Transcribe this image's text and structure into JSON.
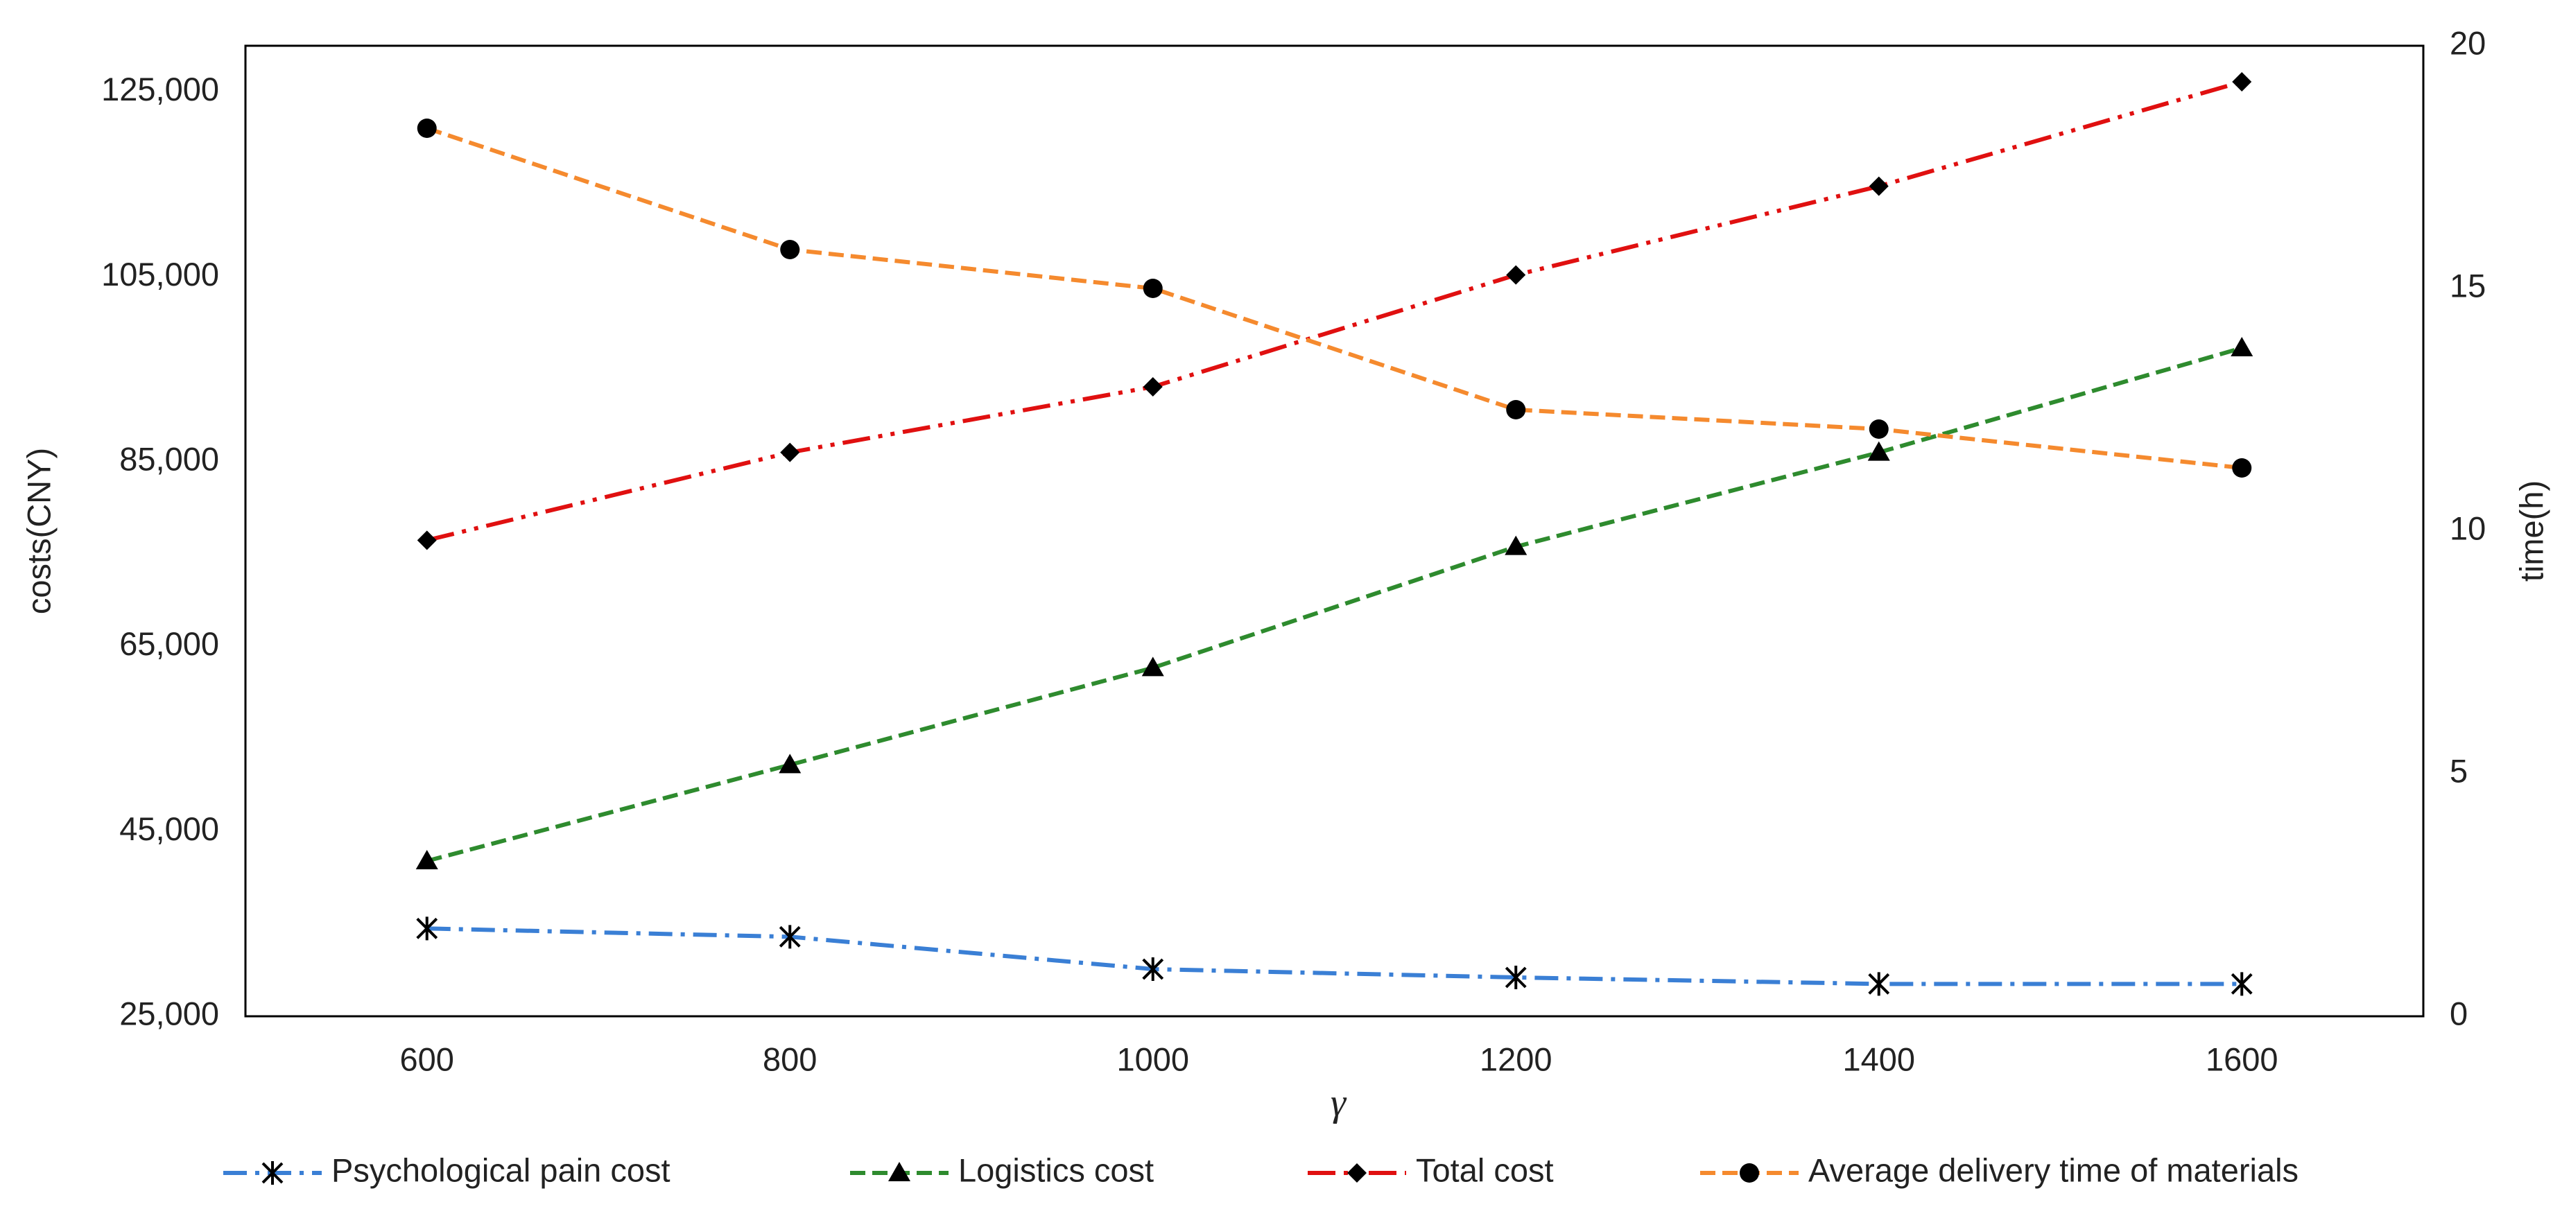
{
  "chart_data": {
    "type": "line",
    "x_label": "γ",
    "y_label": "costs(CNY)",
    "y2_label": "time(h)",
    "x": [
      600,
      800,
      1000,
      1200,
      1400,
      1600
    ],
    "xlim": [
      500,
      1700
    ],
    "xticks": [
      600,
      800,
      1000,
      1200,
      1400,
      1600
    ],
    "ylim": [
      25000,
      130000
    ],
    "yticks": [
      {
        "value": 25000,
        "label": "25,000"
      },
      {
        "value": 45000,
        "label": "45,000"
      },
      {
        "value": 65000,
        "label": "65,000"
      },
      {
        "value": 85000,
        "label": "85,000"
      },
      {
        "value": 105000,
        "label": "105,000"
      },
      {
        "value": 125000,
        "label": "125,000"
      }
    ],
    "y2lim": [
      0,
      20
    ],
    "y2ticks": [
      0,
      5,
      10,
      15,
      20
    ],
    "grid": false,
    "legend": "bottom",
    "series": [
      {
        "name": "Psychological pain cost",
        "color": "#3a7fd5",
        "dash": "dashdot",
        "marker": "asterisk",
        "values": [
          34500,
          33600,
          30100,
          29200,
          28500,
          28500
        ]
      },
      {
        "name": "Logistics cost",
        "color": "#2e8b2e",
        "dash": "dashed",
        "marker": "triangle",
        "values": [
          41800,
          52200,
          62700,
          75800,
          86000,
          97300
        ]
      },
      {
        "name": "Total cost",
        "color": "#e01010",
        "dash": "dashdotdot",
        "marker": "diamond",
        "values": [
          76500,
          86000,
          93100,
          105200,
          114800,
          126100
        ]
      },
      {
        "name": "Average delivery time of materials",
        "color": "#f58a2e",
        "dash": "dashed",
        "marker": "circle",
        "axis": "y2",
        "values": [
          18.3,
          15.8,
          15.0,
          12.5,
          12.1,
          11.3
        ]
      }
    ]
  }
}
